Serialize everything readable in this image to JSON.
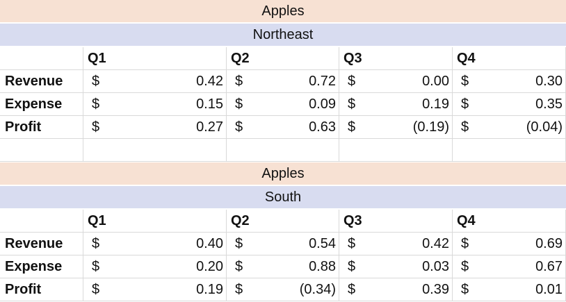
{
  "sections": [
    {
      "fruit": "Apples",
      "region": "Northeast",
      "quarters": [
        "Q1",
        "Q2",
        "Q3",
        "Q4"
      ],
      "rows": [
        {
          "label": "Revenue",
          "cells": [
            {
              "sym": "$",
              "val": "0.42"
            },
            {
              "sym": "$",
              "val": "0.72"
            },
            {
              "sym": "$",
              "val": "0.00"
            },
            {
              "sym": "$",
              "val": "0.30"
            }
          ]
        },
        {
          "label": "Expense",
          "cells": [
            {
              "sym": "$",
              "val": "0.15"
            },
            {
              "sym": "$",
              "val": "0.09"
            },
            {
              "sym": "$",
              "val": "0.19"
            },
            {
              "sym": "$",
              "val": "0.35"
            }
          ]
        },
        {
          "label": "Profit",
          "cells": [
            {
              "sym": "$",
              "val": "0.27"
            },
            {
              "sym": "$",
              "val": "0.63"
            },
            {
              "sym": "$",
              "val": "(0.19)"
            },
            {
              "sym": "$",
              "val": "(0.04)"
            }
          ]
        }
      ]
    },
    {
      "fruit": "Apples",
      "region": "South",
      "quarters": [
        "Q1",
        "Q2",
        "Q3",
        "Q4"
      ],
      "rows": [
        {
          "label": "Revenue",
          "cells": [
            {
              "sym": "$",
              "val": "0.40"
            },
            {
              "sym": "$",
              "val": "0.54"
            },
            {
              "sym": "$",
              "val": "0.42"
            },
            {
              "sym": "$",
              "val": "0.69"
            }
          ]
        },
        {
          "label": "Expense",
          "cells": [
            {
              "sym": "$",
              "val": "0.20"
            },
            {
              "sym": "$",
              "val": "0.88"
            },
            {
              "sym": "$",
              "val": "0.03"
            },
            {
              "sym": "$",
              "val": "0.67"
            }
          ]
        },
        {
          "label": "Profit",
          "cells": [
            {
              "sym": "$",
              "val": "0.19"
            },
            {
              "sym": "$",
              "val": "(0.34)"
            },
            {
              "sym": "$",
              "val": "0.39"
            },
            {
              "sym": "$",
              "val": "0.01"
            }
          ]
        }
      ]
    }
  ]
}
